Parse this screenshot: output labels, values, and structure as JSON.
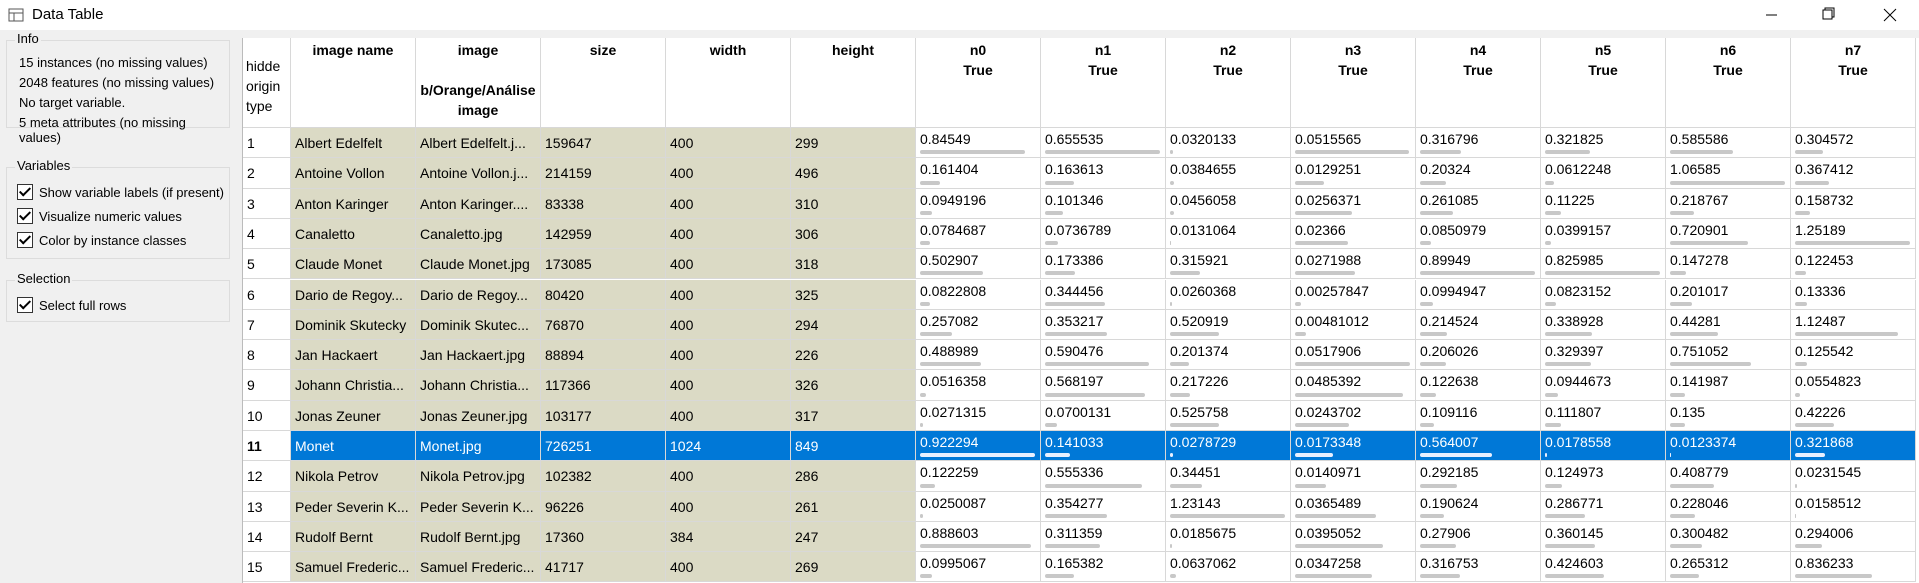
{
  "window": {
    "title": "Data Table"
  },
  "info": {
    "title": "Info",
    "lines": [
      "15 instances (no missing values)",
      "2048 features (no missing values)",
      "No target variable.",
      "5 meta attributes (no missing values)"
    ]
  },
  "variables": {
    "title": "Variables",
    "options": [
      "Show variable labels (if present)",
      "Visualize numeric values",
      "Color by instance classes"
    ]
  },
  "selection": {
    "title": "Selection",
    "options": [
      "Select full rows"
    ]
  },
  "table": {
    "selected_index": 10,
    "header": [
      [
        "hidde",
        "origin",
        "type"
      ],
      [
        "image name"
      ],
      [
        "image",
        "b/Orange/Análise",
        "image"
      ],
      [
        "size"
      ],
      [
        "width"
      ],
      [
        "height"
      ],
      [
        "n0",
        "True"
      ],
      [
        "n1",
        "True"
      ],
      [
        "n2",
        "True"
      ],
      [
        "n3",
        "True"
      ],
      [
        "n4",
        "True"
      ],
      [
        "n5",
        "True"
      ],
      [
        "n6",
        "True"
      ],
      [
        "n7",
        "True"
      ]
    ],
    "rows": [
      [
        1,
        "Albert Edelfelt",
        "Albert Edelfelt.j...",
        159647,
        400,
        299,
        0.84549,
        0.655535,
        0.0320133,
        0.0515565,
        0.316796,
        0.321825,
        0.585586,
        0.304572
      ],
      [
        2,
        "Antoine Vollon",
        "Antoine Vollon.j...",
        214159,
        400,
        496,
        0.161404,
        0.163613,
        0.0384655,
        0.0129251,
        0.20324,
        0.0612248,
        1.06585,
        0.367412
      ],
      [
        3,
        "Anton Karinger",
        "Anton Karinger....",
        83338,
        400,
        310,
        0.0949196,
        0.101346,
        0.0456058,
        0.0256371,
        0.261085,
        0.11225,
        0.218767,
        0.158732
      ],
      [
        4,
        "Canaletto",
        "Canaletto.jpg",
        142959,
        400,
        306,
        0.0784687,
        0.0736789,
        0.0131064,
        0.02366,
        0.0850979,
        0.0399157,
        0.720901,
        1.25189
      ],
      [
        5,
        "Claude Monet",
        "Claude Monet.jpg",
        173085,
        400,
        318,
        0.502907,
        0.173386,
        0.315921,
        0.0271988,
        0.89949,
        0.825985,
        0.147278,
        0.122453
      ],
      [
        6,
        "Dario de Regoy...",
        "Dario de Regoy...",
        80420,
        400,
        325,
        0.0822808,
        0.344456,
        0.0260368,
        0.00257847,
        0.0994947,
        0.0823152,
        0.201017,
        0.13336
      ],
      [
        7,
        "Dominik Skutecky",
        "Dominik Skutec...",
        76870,
        400,
        294,
        0.257082,
        0.353217,
        0.520919,
        0.00481012,
        0.214524,
        0.338928,
        0.44281,
        1.12487
      ],
      [
        8,
        "Jan Hackaert",
        "Jan Hackaert.jpg",
        88894,
        400,
        226,
        0.488989,
        0.590476,
        0.201374,
        0.0517906,
        0.206026,
        0.329397,
        0.751052,
        0.125542
      ],
      [
        9,
        "Johann Christia...",
        "Johann Christia...",
        117366,
        400,
        326,
        0.0516358,
        0.568197,
        0.217226,
        0.0485392,
        0.122638,
        0.0944673,
        0.141987,
        0.0554823
      ],
      [
        10,
        "Jonas Zeuner",
        "Jonas Zeuner.jpg",
        103177,
        400,
        317,
        0.0271315,
        0.0700131,
        0.525758,
        0.0243702,
        0.109116,
        0.111807,
        0.135,
        0.42226
      ],
      [
        11,
        "Monet",
        "Monet.jpg",
        726251,
        1024,
        849,
        0.922294,
        0.141033,
        0.0278729,
        0.0173348,
        0.564007,
        0.0178558,
        0.0123374,
        0.321868
      ],
      [
        12,
        "Nikola Petrov",
        "Nikola Petrov.jpg",
        102382,
        400,
        286,
        0.122259,
        0.555336,
        0.34451,
        0.0140971,
        0.292185,
        0.124973,
        0.408779,
        0.0231545
      ],
      [
        13,
        "Peder Severin K...",
        "Peder Severin K...",
        96226,
        400,
        261,
        0.0250087,
        0.354277,
        1.23143,
        0.0365489,
        0.190624,
        0.286771,
        0.228046,
        0.0158512
      ],
      [
        14,
        "Rudolf Bernt",
        "Rudolf Bernt.jpg",
        17360,
        384,
        247,
        0.888603,
        0.311359,
        0.0185675,
        0.0395052,
        0.27906,
        0.360145,
        0.300482,
        0.294006
      ],
      [
        15,
        "Samuel Frederic...",
        "Samuel Frederic...",
        41717,
        400,
        269,
        0.0995067,
        0.165382,
        0.0637062,
        0.0347258,
        0.316753,
        0.424603,
        0.265312,
        0.836233
      ]
    ]
  }
}
